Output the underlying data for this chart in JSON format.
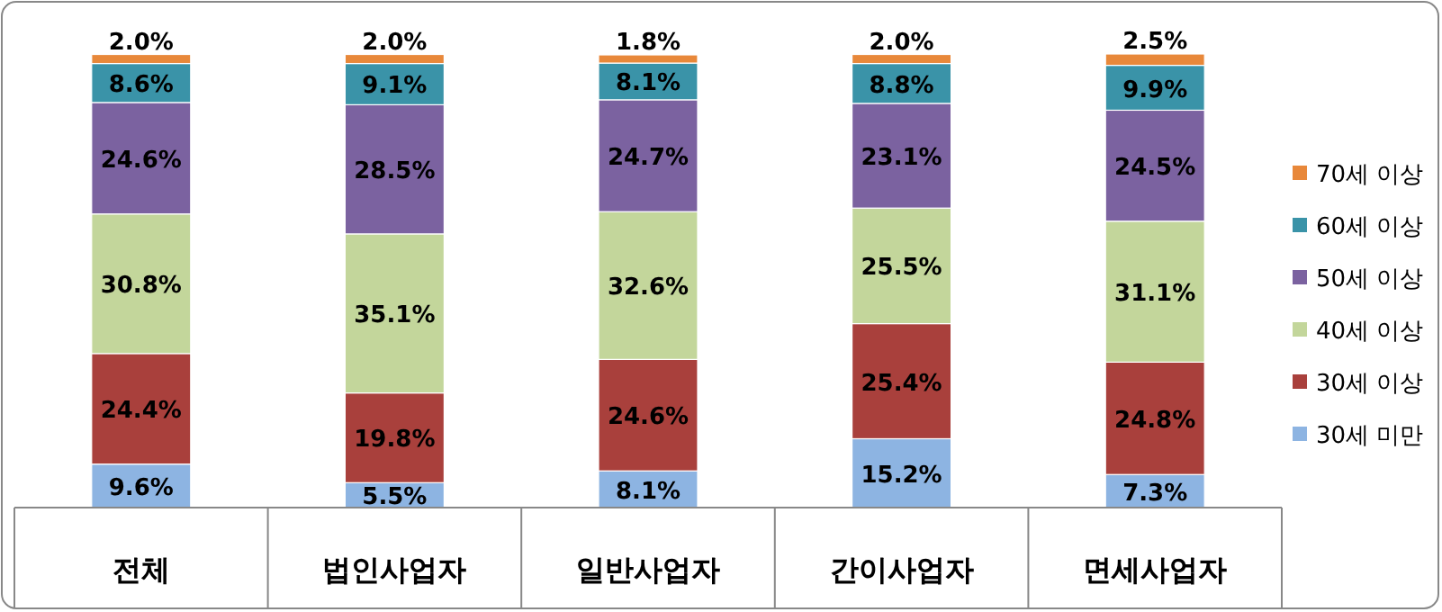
{
  "chart_data": {
    "type": "bar",
    "stacked": true,
    "legend": "right",
    "categories": [
      "전체",
      "법인사업자",
      "일반사업자",
      "간이사업자",
      "면세사업자"
    ],
    "series": [
      {
        "name": "30세 미만",
        "color": "#8db4e2",
        "values": [
          9.6,
          5.5,
          8.1,
          15.2,
          7.3
        ],
        "value_labels": [
          "9.6%",
          "5.5%",
          "8.1%",
          "15.2%",
          "7.3%"
        ]
      },
      {
        "name": "30세 이상",
        "color": "#a9403c",
        "values": [
          24.4,
          19.8,
          24.6,
          25.4,
          24.8
        ],
        "value_labels": [
          "24.4%",
          "19.8%",
          "24.6%",
          "25.4%",
          "24.8%"
        ]
      },
      {
        "name": "40세 이상",
        "color": "#c3d69b",
        "values": [
          30.8,
          35.1,
          32.6,
          25.5,
          31.1
        ],
        "value_labels": [
          "30.8%",
          "35.1%",
          "32.6%",
          "25.5%",
          "31.1%"
        ]
      },
      {
        "name": "50세 이상",
        "color": "#7b62a0",
        "values": [
          24.6,
          28.5,
          24.7,
          23.1,
          24.5
        ],
        "value_labels": [
          "24.6%",
          "28.5%",
          "24.7%",
          "23.1%",
          "24.5%"
        ]
      },
      {
        "name": "60세 이상",
        "color": "#3a93a8",
        "values": [
          8.6,
          9.1,
          8.1,
          8.8,
          9.9
        ],
        "value_labels": [
          "8.6%",
          "9.1%",
          "8.1%",
          "8.8%",
          "9.9%"
        ]
      },
      {
        "name": "70세 이상",
        "color": "#e8883a",
        "values": [
          2.0,
          2.0,
          1.8,
          2.0,
          2.5
        ],
        "value_labels": [
          "2.0%",
          "2.0%",
          "1.8%",
          "2.0%",
          "2.5%"
        ]
      }
    ]
  }
}
